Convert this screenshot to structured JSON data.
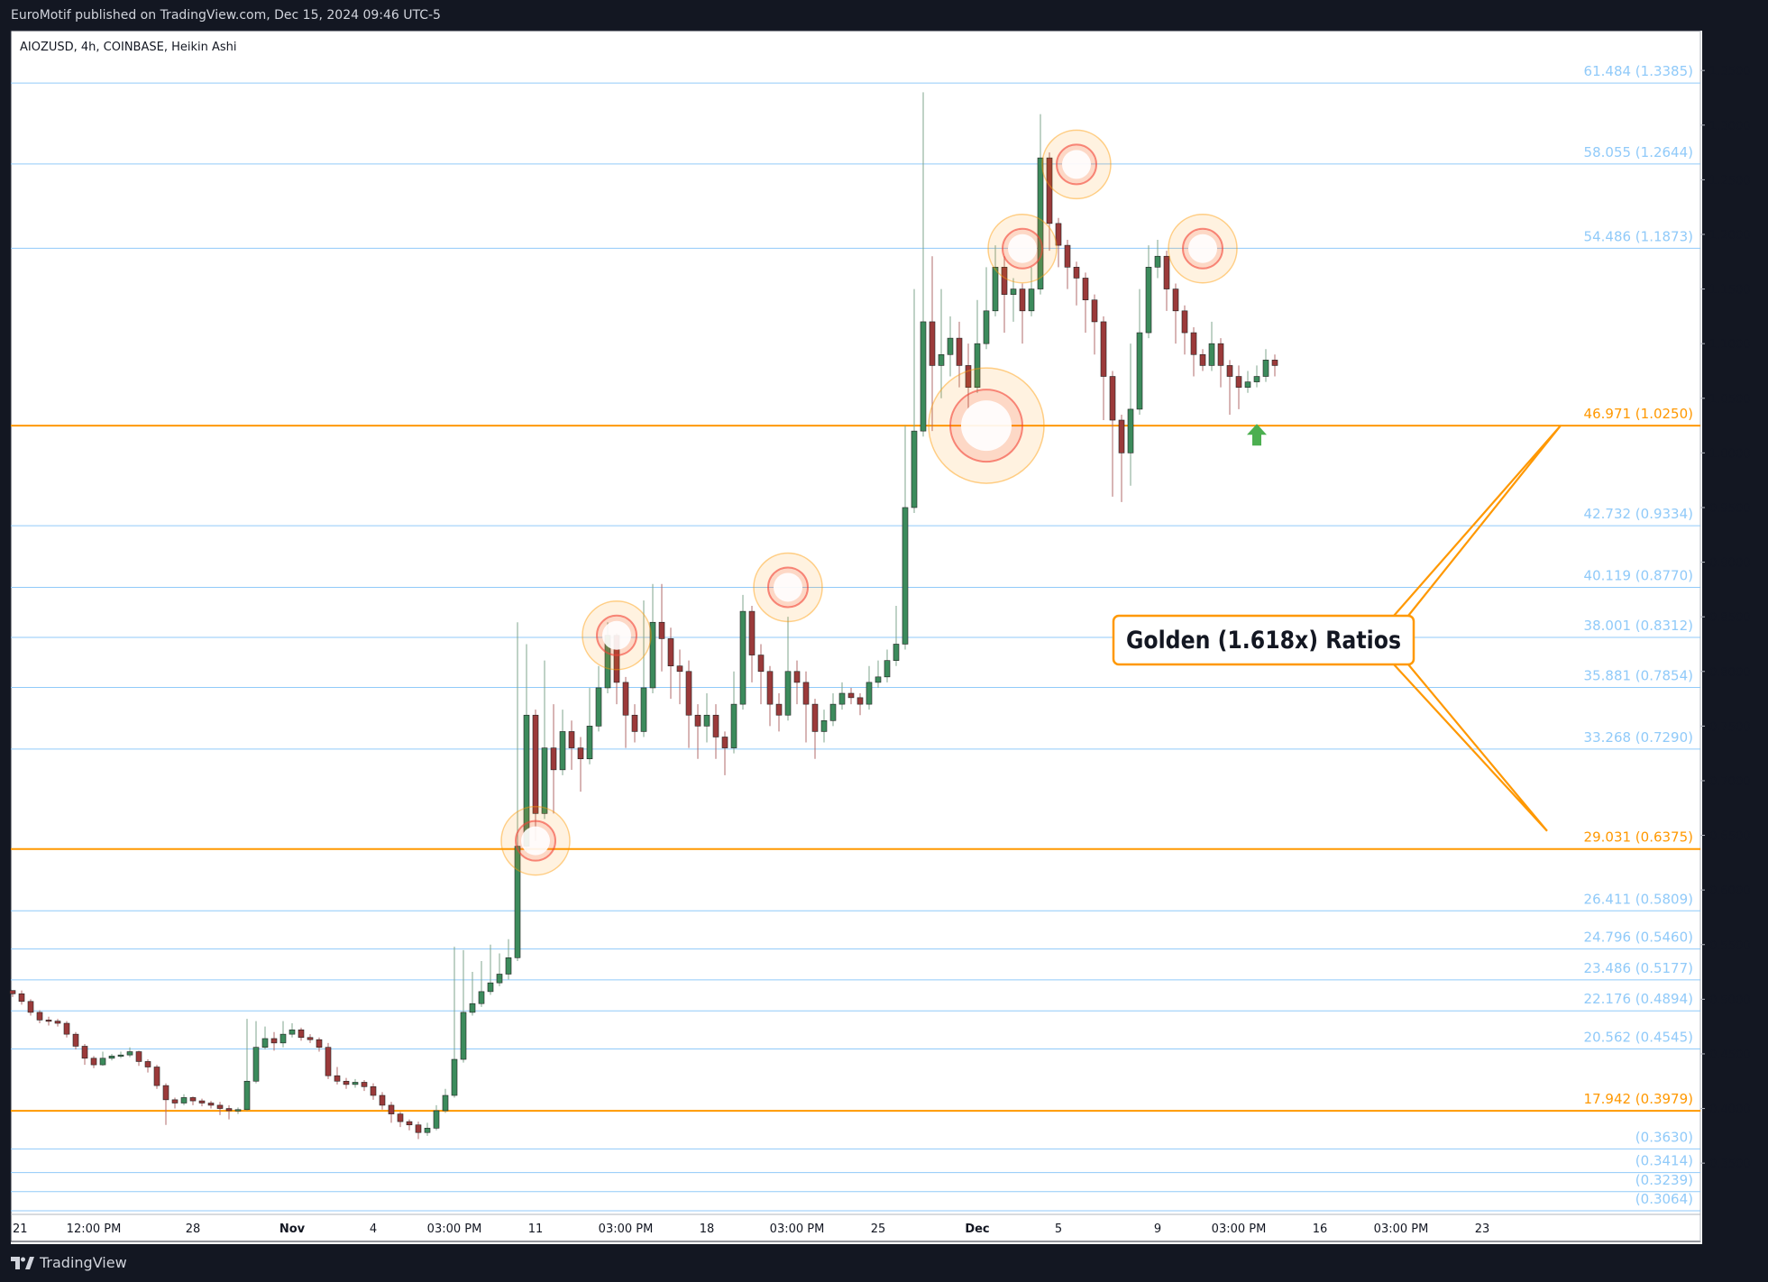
{
  "header": {
    "published": "EuroMotif published on TradingView.com, Dec 15, 2024 09:46 UTC-5"
  },
  "footer": {
    "brand": "TradingView",
    "logo_icon": "tradingview-logo-icon"
  },
  "chart_data": {
    "type": "candlestick",
    "symbol_label": "AIOZUSD, 4h, COINBASE, Heikin Ashi",
    "y_axis_ticks": [
      "1.3500",
      "1.3000",
      "1.2500",
      "1.2000",
      "1.1500",
      "1.1000",
      "1.0500",
      "1.0000",
      "0.9500",
      "0.9000",
      "0.8500",
      "0.8000",
      "0.7500",
      "0.7000",
      "0.6500",
      "0.6000",
      "0.5500",
      "0.5000",
      "0.4500",
      "0.4000",
      "0.3500"
    ],
    "ylim": [
      0.3064,
      1.365
    ],
    "x_axis_ticks": [
      "21",
      "12:00 PM",
      "28",
      "Nov",
      "4",
      "03:00 PM",
      "11",
      "03:00 PM",
      "18",
      "03:00 PM",
      "25",
      "Dec",
      "5",
      "9",
      "03:00 PM",
      "16",
      "03:00 PM",
      "23"
    ],
    "levels": [
      {
        "label": "61.484 (1.3385)",
        "value": 1.3385,
        "color": "#90caf9"
      },
      {
        "label": "58.055 (1.2644)",
        "value": 1.2644,
        "color": "#90caf9"
      },
      {
        "label": "54.486 (1.1873)",
        "value": 1.1873,
        "color": "#90caf9"
      },
      {
        "label": "46.971 (1.0250)",
        "value": 1.025,
        "color": "#ff9800"
      },
      {
        "label": "42.732 (0.9334)",
        "value": 0.9334,
        "color": "#90caf9"
      },
      {
        "label": "40.119 (0.8770)",
        "value": 0.877,
        "color": "#90caf9"
      },
      {
        "label": "38.001 (0.8312)",
        "value": 0.8312,
        "color": "#90caf9"
      },
      {
        "label": "35.881 (0.7854)",
        "value": 0.7854,
        "color": "#90caf9"
      },
      {
        "label": "33.268 (0.7290)",
        "value": 0.729,
        "color": "#90caf9"
      },
      {
        "label": "29.031 (0.6375)",
        "value": 0.6375,
        "color": "#ff9800"
      },
      {
        "label": "26.411 (0.5809)",
        "value": 0.5809,
        "color": "#90caf9"
      },
      {
        "label": "24.796 (0.5460)",
        "value": 0.546,
        "color": "#90caf9"
      },
      {
        "label": "23.486 (0.5177)",
        "value": 0.5177,
        "color": "#90caf9"
      },
      {
        "label": "22.176 (0.4894)",
        "value": 0.4894,
        "color": "#90caf9"
      },
      {
        "label": "20.562 (0.4545)",
        "value": 0.4545,
        "color": "#90caf9"
      },
      {
        "label": "17.942 (0.3979)",
        "value": 0.3979,
        "color": "#ff9800"
      },
      {
        "label": "(0.3630)",
        "value": 0.363,
        "color": "#90caf9"
      },
      {
        "label": "(0.3414)",
        "value": 0.3414,
        "color": "#90caf9"
      },
      {
        "label": "(0.3239)",
        "value": 0.3239,
        "color": "#90caf9"
      },
      {
        "label": "(0.3064)",
        "value": 0.3064,
        "color": "#90caf9"
      }
    ],
    "annotation": {
      "text": "Golden (1.618x) Ratios",
      "targets": [
        1.025,
        0.6375
      ]
    },
    "highlight_circles": [
      {
        "x_index": 58,
        "price": 0.645
      },
      {
        "x_index": 67,
        "price": 0.833
      },
      {
        "x_index": 86,
        "price": 0.877
      },
      {
        "x_index": 108,
        "price": 1.025
      },
      {
        "x_index": 112,
        "price": 1.187
      },
      {
        "x_index": 118,
        "price": 1.264
      },
      {
        "x_index": 132,
        "price": 1.187
      }
    ],
    "arrow_marker": {
      "x_index": 138,
      "price": 1.015,
      "icon": "green-up-arrow-icon"
    },
    "candle_count": 141,
    "candles": [
      [
        0.508,
        0.505,
        0.508,
        0.502
      ],
      [
        0.505,
        0.498,
        0.508,
        0.495
      ],
      [
        0.498,
        0.488,
        0.5,
        0.485
      ],
      [
        0.488,
        0.481,
        0.49,
        0.478
      ],
      [
        0.481,
        0.48,
        0.484,
        0.476
      ],
      [
        0.48,
        0.478,
        0.482,
        0.475
      ],
      [
        0.478,
        0.468,
        0.48,
        0.465
      ],
      [
        0.468,
        0.457,
        0.47,
        0.454
      ],
      [
        0.457,
        0.446,
        0.459,
        0.44
      ],
      [
        0.446,
        0.44,
        0.448,
        0.437
      ],
      [
        0.44,
        0.446,
        0.452,
        0.439
      ],
      [
        0.446,
        0.448,
        0.45,
        0.444
      ],
      [
        0.448,
        0.449,
        0.452,
        0.446
      ],
      [
        0.449,
        0.452,
        0.456,
        0.447
      ],
      [
        0.452,
        0.443,
        0.453,
        0.439
      ],
      [
        0.443,
        0.438,
        0.445,
        0.433
      ],
      [
        0.438,
        0.421,
        0.44,
        0.418
      ],
      [
        0.421,
        0.408,
        0.423,
        0.385
      ],
      [
        0.408,
        0.405,
        0.41,
        0.4
      ],
      [
        0.405,
        0.41,
        0.413,
        0.403
      ],
      [
        0.41,
        0.407,
        0.411,
        0.403
      ],
      [
        0.407,
        0.405,
        0.409,
        0.402
      ],
      [
        0.405,
        0.403,
        0.407,
        0.4
      ],
      [
        0.403,
        0.4,
        0.406,
        0.394
      ],
      [
        0.4,
        0.398,
        0.403,
        0.39
      ],
      [
        0.398,
        0.399,
        0.401,
        0.395
      ],
      [
        0.399,
        0.425,
        0.482,
        0.398
      ],
      [
        0.425,
        0.456,
        0.48,
        0.423
      ],
      [
        0.456,
        0.464,
        0.475,
        0.454
      ],
      [
        0.464,
        0.46,
        0.47,
        0.453
      ],
      [
        0.46,
        0.468,
        0.48,
        0.456
      ],
      [
        0.468,
        0.472,
        0.478,
        0.465
      ],
      [
        0.472,
        0.465,
        0.474,
        0.462
      ],
      [
        0.465,
        0.463,
        0.468,
        0.46
      ],
      [
        0.463,
        0.456,
        0.465,
        0.452
      ],
      [
        0.456,
        0.43,
        0.46,
        0.427
      ],
      [
        0.43,
        0.425,
        0.438,
        0.422
      ],
      [
        0.425,
        0.422,
        0.428,
        0.418
      ],
      [
        0.422,
        0.424,
        0.427,
        0.419
      ],
      [
        0.424,
        0.42,
        0.426,
        0.416
      ],
      [
        0.42,
        0.412,
        0.423,
        0.408
      ],
      [
        0.412,
        0.403,
        0.415,
        0.399
      ],
      [
        0.403,
        0.395,
        0.406,
        0.387
      ],
      [
        0.395,
        0.388,
        0.397,
        0.383
      ],
      [
        0.388,
        0.385,
        0.39,
        0.38
      ],
      [
        0.385,
        0.378,
        0.388,
        0.372
      ],
      [
        0.378,
        0.382,
        0.387,
        0.375
      ],
      [
        0.382,
        0.398,
        0.403,
        0.38
      ],
      [
        0.398,
        0.412,
        0.418,
        0.396
      ],
      [
        0.412,
        0.445,
        0.548,
        0.41
      ],
      [
        0.445,
        0.488,
        0.545,
        0.442
      ],
      [
        0.488,
        0.496,
        0.525,
        0.485
      ],
      [
        0.496,
        0.507,
        0.535,
        0.493
      ],
      [
        0.507,
        0.515,
        0.55,
        0.504
      ],
      [
        0.515,
        0.523,
        0.542,
        0.512
      ],
      [
        0.523,
        0.538,
        0.555,
        0.518
      ],
      [
        0.538,
        0.64,
        0.845,
        0.535
      ],
      [
        0.64,
        0.76,
        0.825,
        0.635
      ],
      [
        0.76,
        0.67,
        0.765,
        0.645
      ],
      [
        0.67,
        0.73,
        0.81,
        0.665
      ],
      [
        0.73,
        0.71,
        0.77,
        0.67
      ],
      [
        0.71,
        0.745,
        0.765,
        0.705
      ],
      [
        0.745,
        0.73,
        0.755,
        0.71
      ],
      [
        0.73,
        0.72,
        0.74,
        0.69
      ],
      [
        0.72,
        0.75,
        0.785,
        0.715
      ],
      [
        0.75,
        0.785,
        0.805,
        0.745
      ],
      [
        0.785,
        0.833,
        0.845,
        0.78
      ],
      [
        0.833,
        0.79,
        0.835,
        0.77
      ],
      [
        0.79,
        0.76,
        0.795,
        0.73
      ],
      [
        0.76,
        0.745,
        0.77,
        0.735
      ],
      [
        0.745,
        0.785,
        0.865,
        0.74
      ],
      [
        0.785,
        0.845,
        0.88,
        0.78
      ],
      [
        0.845,
        0.83,
        0.88,
        0.8
      ],
      [
        0.83,
        0.805,
        0.84,
        0.775
      ],
      [
        0.805,
        0.8,
        0.82,
        0.77
      ],
      [
        0.8,
        0.76,
        0.81,
        0.73
      ],
      [
        0.76,
        0.75,
        0.77,
        0.72
      ],
      [
        0.75,
        0.76,
        0.78,
        0.735
      ],
      [
        0.76,
        0.74,
        0.77,
        0.72
      ],
      [
        0.74,
        0.73,
        0.745,
        0.705
      ],
      [
        0.73,
        0.77,
        0.8,
        0.725
      ],
      [
        0.77,
        0.855,
        0.87,
        0.765
      ],
      [
        0.855,
        0.815,
        0.86,
        0.79
      ],
      [
        0.815,
        0.8,
        0.825,
        0.77
      ],
      [
        0.8,
        0.77,
        0.805,
        0.75
      ],
      [
        0.77,
        0.76,
        0.78,
        0.745
      ],
      [
        0.76,
        0.8,
        0.85,
        0.755
      ],
      [
        0.8,
        0.79,
        0.81,
        0.77
      ],
      [
        0.79,
        0.77,
        0.8,
        0.735
      ],
      [
        0.77,
        0.745,
        0.775,
        0.72
      ],
      [
        0.745,
        0.755,
        0.765,
        0.735
      ],
      [
        0.755,
        0.77,
        0.78,
        0.75
      ],
      [
        0.77,
        0.78,
        0.79,
        0.765
      ],
      [
        0.78,
        0.776,
        0.785,
        0.77
      ],
      [
        0.776,
        0.77,
        0.78,
        0.76
      ],
      [
        0.77,
        0.79,
        0.805,
        0.765
      ],
      [
        0.79,
        0.795,
        0.81,
        0.785
      ],
      [
        0.795,
        0.81,
        0.82,
        0.79
      ],
      [
        0.81,
        0.825,
        0.86,
        0.805
      ],
      [
        0.825,
        0.95,
        1.025,
        0.82
      ],
      [
        0.95,
        1.02,
        1.15,
        0.945
      ],
      [
        1.02,
        1.12,
        1.33,
        1.015
      ],
      [
        1.12,
        1.08,
        1.18,
        1.02
      ],
      [
        1.08,
        1.09,
        1.15,
        1.05
      ],
      [
        1.09,
        1.105,
        1.125,
        1.07
      ],
      [
        1.105,
        1.08,
        1.12,
        1.06
      ],
      [
        1.08,
        1.06,
        1.1,
        1.04
      ],
      [
        1.06,
        1.1,
        1.14,
        1.055
      ],
      [
        1.1,
        1.13,
        1.17,
        1.095
      ],
      [
        1.13,
        1.17,
        1.19,
        1.125
      ],
      [
        1.17,
        1.145,
        1.18,
        1.11
      ],
      [
        1.145,
        1.15,
        1.16,
        1.12
      ],
      [
        1.15,
        1.13,
        1.155,
        1.1
      ],
      [
        1.13,
        1.15,
        1.17,
        1.125
      ],
      [
        1.15,
        1.27,
        1.31,
        1.145
      ],
      [
        1.27,
        1.21,
        1.275,
        1.185
      ],
      [
        1.21,
        1.19,
        1.215,
        1.17
      ],
      [
        1.19,
        1.17,
        1.195,
        1.15
      ],
      [
        1.17,
        1.16,
        1.175,
        1.135
      ],
      [
        1.16,
        1.14,
        1.165,
        1.11
      ],
      [
        1.14,
        1.12,
        1.145,
        1.09
      ],
      [
        1.12,
        1.07,
        1.125,
        1.03
      ],
      [
        1.07,
        1.03,
        1.075,
        0.96
      ],
      [
        1.03,
        1.0,
        1.035,
        0.955
      ],
      [
        1.0,
        1.04,
        1.1,
        0.97
      ],
      [
        1.04,
        1.11,
        1.15,
        1.035
      ],
      [
        1.11,
        1.17,
        1.19,
        1.105
      ],
      [
        1.17,
        1.18,
        1.195,
        1.16
      ],
      [
        1.18,
        1.15,
        1.185,
        1.13
      ],
      [
        1.15,
        1.13,
        1.155,
        1.1
      ],
      [
        1.13,
        1.11,
        1.135,
        1.09
      ],
      [
        1.11,
        1.09,
        1.115,
        1.07
      ],
      [
        1.09,
        1.08,
        1.095,
        1.075
      ],
      [
        1.08,
        1.1,
        1.12,
        1.075
      ],
      [
        1.1,
        1.08,
        1.105,
        1.06
      ],
      [
        1.08,
        1.07,
        1.085,
        1.035
      ],
      [
        1.07,
        1.06,
        1.08,
        1.04
      ],
      [
        1.06,
        1.065,
        1.075,
        1.055
      ],
      [
        1.065,
        1.07,
        1.08,
        1.06
      ],
      [
        1.07,
        1.085,
        1.095,
        1.065
      ],
      [
        1.085,
        1.08,
        1.09,
        1.07
      ]
    ],
    "colors": {
      "up": "#3c8b5c",
      "down": "#9b3a3a",
      "fib": "#90caf9",
      "golden": "#ff9800",
      "arrow": "#4caf50"
    },
    "grid": false,
    "legend": "none"
  }
}
